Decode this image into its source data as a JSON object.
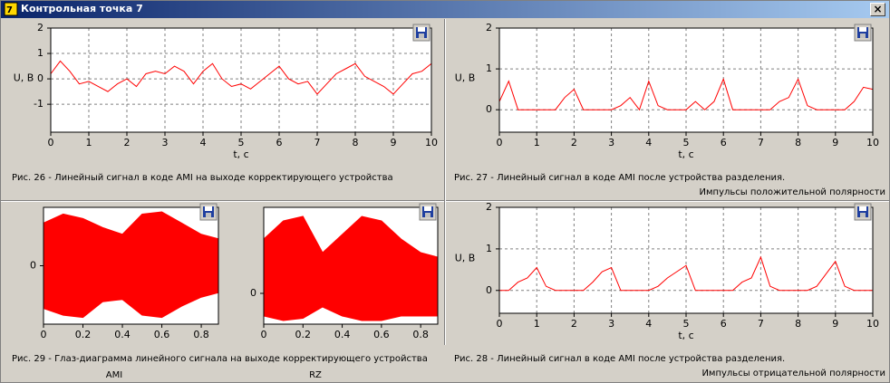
{
  "window": {
    "title": "Контрольная точка 7",
    "close": "×"
  },
  "chart_data": [
    {
      "type": "line",
      "color": "#ff0000",
      "grid": true,
      "xlabel": "t, c",
      "ylabel": "U, B",
      "caption": [
        "Рис. 26 - Линейный сигнал в коде AMI на выходе корректирующего устройства"
      ],
      "xlim": [
        0,
        10
      ],
      "ylim": [
        -2.1,
        2
      ],
      "xticks": [
        0,
        1,
        2,
        3,
        4,
        5,
        6,
        7,
        8,
        9,
        10
      ],
      "yticks": [
        -1,
        0,
        1,
        2
      ],
      "x": [
        0,
        0.25,
        0.5,
        0.75,
        1,
        1.25,
        1.5,
        1.75,
        2,
        2.25,
        2.5,
        2.75,
        3,
        3.25,
        3.5,
        3.75,
        4,
        4.25,
        4.5,
        4.75,
        5,
        5.25,
        5.5,
        5.75,
        6,
        6.25,
        6.5,
        6.75,
        7,
        7.25,
        7.5,
        7.75,
        8,
        8.25,
        8.5,
        8.75,
        9,
        9.25,
        9.5,
        9.75,
        10
      ],
      "values": [
        0.2,
        0.7,
        0.3,
        -0.2,
        -0.1,
        -0.3,
        -0.5,
        -0.2,
        0,
        -0.3,
        0.2,
        0.3,
        0.2,
        0.5,
        0.3,
        -0.2,
        0.3,
        0.6,
        0,
        -0.3,
        -0.2,
        -0.4,
        -0.1,
        0.2,
        0.5,
        0,
        -0.2,
        -0.1,
        -0.6,
        -0.2,
        0.2,
        0.4,
        0.6,
        0.1,
        -0.1,
        -0.3,
        -0.6,
        -0.2,
        0.2,
        0.3,
        0.6
      ]
    },
    {
      "type": "line",
      "color": "#ff0000",
      "grid": true,
      "xlabel": "t, c",
      "ylabel": "U, B",
      "caption": [
        "Рис. 27 - Линейный сигнал в коде AMI после устройства разделения.",
        "Импульсы положительной полярности"
      ],
      "xlim": [
        0,
        10
      ],
      "ylim": [
        -0.55,
        2
      ],
      "xticks": [
        0,
        1,
        2,
        3,
        4,
        5,
        6,
        7,
        8,
        9,
        10
      ],
      "yticks": [
        0,
        1,
        2
      ],
      "x": [
        0,
        0.25,
        0.5,
        0.75,
        1,
        1.25,
        1.5,
        1.75,
        2,
        2.25,
        2.5,
        2.75,
        3,
        3.25,
        3.5,
        3.75,
        4,
        4.25,
        4.5,
        4.75,
        5,
        5.25,
        5.5,
        5.75,
        6,
        6.25,
        6.5,
        6.75,
        7,
        7.25,
        7.5,
        7.75,
        8,
        8.25,
        8.5,
        8.75,
        9,
        9.25,
        9.5,
        9.75,
        10
      ],
      "values": [
        0.2,
        0.7,
        0,
        0,
        0,
        0,
        0,
        0.3,
        0.5,
        0,
        0,
        0,
        0,
        0.1,
        0.3,
        0,
        0.7,
        0.1,
        0,
        0,
        0,
        0.2,
        0,
        0.2,
        0.75,
        0,
        0,
        0,
        0,
        0,
        0.2,
        0.3,
        0.75,
        0.1,
        0,
        0,
        0,
        0,
        0.2,
        0.55,
        0.5
      ]
    },
    {
      "type": "eye",
      "color": "#ff0000",
      "label": "AMI",
      "caption": [
        "Рис. 29 - Глаз-диаграмма линейного сигнала на выходе корректирующего устройства"
      ],
      "xlim": [
        0,
        0.887
      ],
      "ylim": [
        -1.3,
        1.3
      ],
      "xticks": [
        0,
        0.2,
        0.4,
        0.6,
        0.8
      ],
      "yticks": [
        0
      ],
      "x": [
        0,
        0.1,
        0.2,
        0.3,
        0.4,
        0.5,
        0.6,
        0.7,
        0.8,
        0.887
      ],
      "upper": [
        0.95,
        1.15,
        1.05,
        0.85,
        0.7,
        1.15,
        1.2,
        0.95,
        0.7,
        0.6
      ],
      "lower": [
        -0.95,
        -1.1,
        -1.15,
        -0.8,
        -0.75,
        -1.1,
        -1.15,
        -0.9,
        -0.7,
        -0.6
      ]
    },
    {
      "type": "eye",
      "color": "#ff0000",
      "label": "RZ",
      "xlim": [
        0,
        0.887
      ],
      "ylim": [
        -0.68,
        1.9
      ],
      "xticks": [
        0,
        0.2,
        0.4,
        0.6,
        0.8
      ],
      "yticks": [
        0
      ],
      "x": [
        0,
        0.1,
        0.2,
        0.3,
        0.4,
        0.5,
        0.6,
        0.7,
        0.8,
        0.887
      ],
      "upper": [
        1.2,
        1.6,
        1.7,
        0.9,
        1.3,
        1.7,
        1.6,
        1.2,
        0.9,
        0.8
      ],
      "lower": [
        -0.5,
        -0.6,
        -0.55,
        -0.3,
        -0.5,
        -0.6,
        -0.6,
        -0.5,
        -0.5,
        -0.5
      ]
    },
    {
      "type": "line",
      "color": "#ff0000",
      "grid": true,
      "xlabel": "t, c",
      "ylabel": "U, B",
      "caption": [
        "Рис. 28 - Линейный сигнал в коде AMI после устройства разделения.",
        "Импульсы отрицательной полярности"
      ],
      "xlim": [
        0,
        10
      ],
      "ylim": [
        -0.55,
        2
      ],
      "xticks": [
        0,
        1,
        2,
        3,
        4,
        5,
        6,
        7,
        8,
        9,
        10
      ],
      "yticks": [
        0,
        1,
        2
      ],
      "x": [
        0,
        0.25,
        0.5,
        0.75,
        1,
        1.25,
        1.5,
        1.75,
        2,
        2.25,
        2.5,
        2.75,
        3,
        3.25,
        3.5,
        3.75,
        4,
        4.25,
        4.5,
        4.75,
        5,
        5.25,
        5.5,
        5.75,
        6,
        6.25,
        6.5,
        6.75,
        7,
        7.25,
        7.5,
        7.75,
        8,
        8.25,
        8.5,
        8.75,
        9,
        9.25,
        9.5,
        9.75,
        10
      ],
      "values": [
        0,
        0,
        0.2,
        0.3,
        0.55,
        0.1,
        0,
        0,
        0,
        0,
        0.2,
        0.45,
        0.55,
        0,
        0,
        0,
        0,
        0.1,
        0.3,
        0.45,
        0.6,
        0,
        0,
        0,
        0,
        0,
        0.2,
        0.3,
        0.8,
        0.1,
        0,
        0,
        0,
        0,
        0.1,
        0.4,
        0.7,
        0.1,
        0,
        0,
        0
      ]
    }
  ]
}
